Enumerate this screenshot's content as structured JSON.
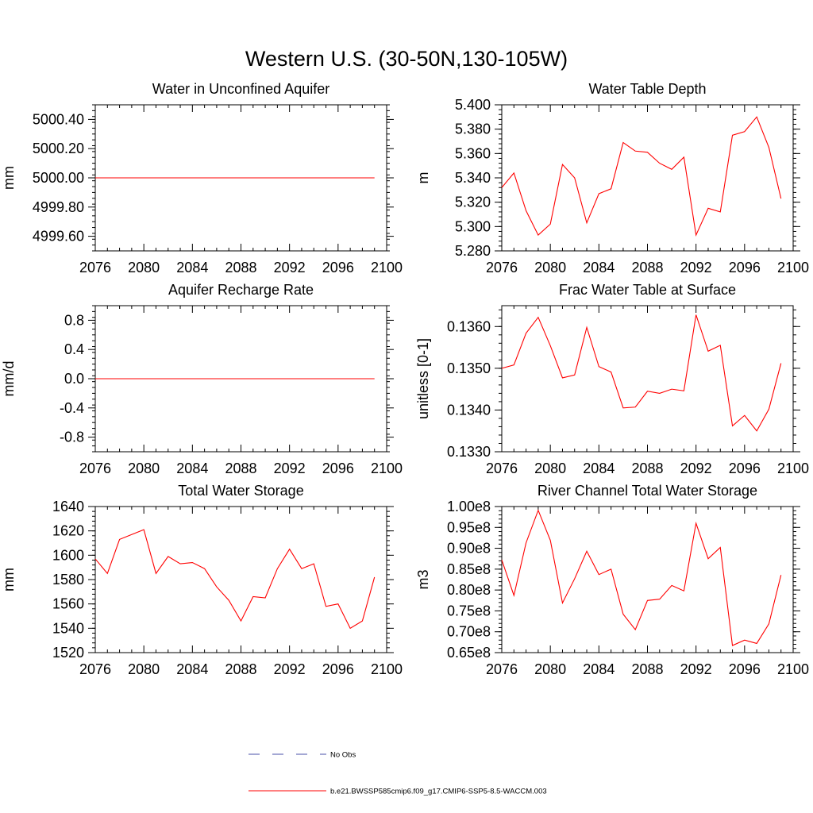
{
  "figure": {
    "title": "Western U.S. (30-50N,130-105W)"
  },
  "legend": {
    "entries": [
      {
        "label": "No Obs",
        "color": "#4a52a8",
        "style": "dashed"
      },
      {
        "label": "b.e21.BWSSP585cmip6.f09_g17.CMIP6-SSP5-8.5-WACCM.003",
        "color": "#ff0000",
        "style": "solid"
      }
    ]
  },
  "colors": {
    "series": "#ff0000",
    "axis": "#000000"
  },
  "chart_data": [
    {
      "type": "line",
      "title": "Water in Unconfined Aquifer",
      "xlabel": "",
      "ylabel": "mm",
      "xlim": [
        2076,
        2100
      ],
      "ylim": [
        4999.5,
        5000.5
      ],
      "xticks": [
        2076,
        2080,
        2084,
        2088,
        2092,
        2096,
        2100
      ],
      "xticklabels": [
        "2076",
        "2080",
        "2084",
        "2088",
        "2092",
        "2096",
        "2100"
      ],
      "yticks": [
        4999.6,
        4999.8,
        5000.0,
        5000.2,
        5000.4
      ],
      "yticklabels": [
        "4999.60",
        "4999.80",
        "5000.00",
        "5000.20",
        "5000.40"
      ],
      "x": [
        2076,
        2077,
        2078,
        2079,
        2080,
        2081,
        2082,
        2083,
        2084,
        2085,
        2086,
        2087,
        2088,
        2089,
        2090,
        2091,
        2092,
        2093,
        2094,
        2095,
        2096,
        2097,
        2098,
        2099
      ],
      "series": [
        {
          "name": "b.e21.BWSSP585cmip6.f09_g17.CMIP6-SSP5-8.5-WACCM.003",
          "values": [
            5000,
            5000,
            5000,
            5000,
            5000,
            5000,
            5000,
            5000,
            5000,
            5000,
            5000,
            5000,
            5000,
            5000,
            5000,
            5000,
            5000,
            5000,
            5000,
            5000,
            5000,
            5000,
            5000,
            5000
          ]
        }
      ]
    },
    {
      "type": "line",
      "title": "Water Table Depth",
      "xlabel": "",
      "ylabel": "m",
      "xlim": [
        2076,
        2100
      ],
      "ylim": [
        5.28,
        5.4
      ],
      "xticks": [
        2076,
        2080,
        2084,
        2088,
        2092,
        2096,
        2100
      ],
      "xticklabels": [
        "2076",
        "2080",
        "2084",
        "2088",
        "2092",
        "2096",
        "2100"
      ],
      "yticks": [
        5.28,
        5.3,
        5.32,
        5.34,
        5.36,
        5.38,
        5.4
      ],
      "yticklabels": [
        "5.280",
        "5.300",
        "5.320",
        "5.340",
        "5.360",
        "5.380",
        "5.400"
      ],
      "x": [
        2076,
        2077,
        2078,
        2079,
        2080,
        2081,
        2082,
        2083,
        2084,
        2085,
        2086,
        2087,
        2088,
        2089,
        2090,
        2091,
        2092,
        2093,
        2094,
        2095,
        2096,
        2097,
        2098,
        2099
      ],
      "series": [
        {
          "name": "b.e21.BWSSP585cmip6.f09_g17.CMIP6-SSP5-8.5-WACCM.003",
          "values": [
            5.332,
            5.344,
            5.313,
            5.293,
            5.302,
            5.351,
            5.34,
            5.303,
            5.327,
            5.331,
            5.369,
            5.362,
            5.361,
            5.352,
            5.347,
            5.357,
            5.293,
            5.315,
            5.312,
            5.375,
            5.378,
            5.39,
            5.365,
            5.323
          ]
        }
      ]
    },
    {
      "type": "line",
      "title": "Aquifer Recharge Rate",
      "xlabel": "",
      "ylabel": "mm/d",
      "xlim": [
        2076,
        2100
      ],
      "ylim": [
        -1.0,
        1.0
      ],
      "xticks": [
        2076,
        2080,
        2084,
        2088,
        2092,
        2096,
        2100
      ],
      "xticklabels": [
        "2076",
        "2080",
        "2084",
        "2088",
        "2092",
        "2096",
        "2100"
      ],
      "yticks": [
        -0.8,
        -0.4,
        0.0,
        0.4,
        0.8
      ],
      "yticklabels": [
        "-0.8",
        "-0.4",
        "0.0",
        "0.4",
        "0.8"
      ],
      "x": [
        2076,
        2077,
        2078,
        2079,
        2080,
        2081,
        2082,
        2083,
        2084,
        2085,
        2086,
        2087,
        2088,
        2089,
        2090,
        2091,
        2092,
        2093,
        2094,
        2095,
        2096,
        2097,
        2098,
        2099
      ],
      "series": [
        {
          "name": "b.e21.BWSSP585cmip6.f09_g17.CMIP6-SSP5-8.5-WACCM.003",
          "values": [
            0,
            0,
            0,
            0,
            0,
            0,
            0,
            0,
            0,
            0,
            0,
            0,
            0,
            0,
            0,
            0,
            0,
            0,
            0,
            0,
            0,
            0,
            0,
            0
          ]
        }
      ]
    },
    {
      "type": "line",
      "title": "Frac Water Table at Surface",
      "xlabel": "",
      "ylabel": "unitless [0-1]",
      "xlim": [
        2076,
        2100
      ],
      "ylim": [
        0.133,
        0.1365
      ],
      "xticks": [
        2076,
        2080,
        2084,
        2088,
        2092,
        2096,
        2100
      ],
      "xticklabels": [
        "2076",
        "2080",
        "2084",
        "2088",
        "2092",
        "2096",
        "2100"
      ],
      "yticks": [
        0.133,
        0.134,
        0.135,
        0.136
      ],
      "yticklabels": [
        "0.1330",
        "0.1340",
        "0.1350",
        "0.1360"
      ],
      "x": [
        2076,
        2077,
        2078,
        2079,
        2080,
        2081,
        2082,
        2083,
        2084,
        2085,
        2086,
        2087,
        2088,
        2089,
        2090,
        2091,
        2092,
        2093,
        2094,
        2095,
        2096,
        2097,
        2098,
        2099
      ],
      "series": [
        {
          "name": "b.e21.BWSSP585cmip6.f09_g17.CMIP6-SSP5-8.5-WACCM.003",
          "values": [
            0.135,
            0.13508,
            0.13584,
            0.13622,
            0.13554,
            0.13477,
            0.13484,
            0.13598,
            0.13504,
            0.13491,
            0.13405,
            0.13407,
            0.13445,
            0.1344,
            0.1345,
            0.13446,
            0.13628,
            0.13541,
            0.13555,
            0.13362,
            0.13387,
            0.1335,
            0.13402,
            0.13512
          ]
        }
      ]
    },
    {
      "type": "line",
      "title": "Total Water Storage",
      "xlabel": "",
      "ylabel": "mm",
      "xlim": [
        2076,
        2100
      ],
      "ylim": [
        1520,
        1640
      ],
      "xticks": [
        2076,
        2080,
        2084,
        2088,
        2092,
        2096,
        2100
      ],
      "xticklabels": [
        "2076",
        "2080",
        "2084",
        "2088",
        "2092",
        "2096",
        "2100"
      ],
      "yticks": [
        1520,
        1540,
        1560,
        1580,
        1600,
        1620,
        1640
      ],
      "yticklabels": [
        "1520",
        "1540",
        "1560",
        "1580",
        "1600",
        "1620",
        "1640"
      ],
      "x": [
        2076,
        2077,
        2078,
        2079,
        2080,
        2081,
        2082,
        2083,
        2084,
        2085,
        2086,
        2087,
        2088,
        2089,
        2090,
        2091,
        2092,
        2093,
        2094,
        2095,
        2096,
        2097,
        2098,
        2099
      ],
      "series": [
        {
          "name": "b.e21.BWSSP585cmip6.f09_g17.CMIP6-SSP5-8.5-WACCM.003",
          "values": [
            1597,
            1585,
            1613,
            1617,
            1621,
            1585,
            1599,
            1593,
            1594,
            1589,
            1574,
            1563,
            1546,
            1566,
            1565,
            1589,
            1605,
            1589,
            1593,
            1558,
            1560,
            1540,
            1546,
            1582
          ]
        }
      ]
    },
    {
      "type": "line",
      "title": "River Channel Total Water Storage",
      "xlabel": "",
      "ylabel": "m3",
      "xlim": [
        2076,
        2100
      ],
      "ylim": [
        65000000.0,
        100000000.0
      ],
      "xticks": [
        2076,
        2080,
        2084,
        2088,
        2092,
        2096,
        2100
      ],
      "xticklabels": [
        "2076",
        "2080",
        "2084",
        "2088",
        "2092",
        "2096",
        "2100"
      ],
      "yticks": [
        65000000.0,
        70000000.0,
        75000000.0,
        80000000.0,
        85000000.0,
        90000000.0,
        95000000.0,
        100000000.0
      ],
      "yticklabels": [
        "0.65e8",
        "0.70e8",
        "0.75e8",
        "0.80e8",
        "0.85e8",
        "0.90e8",
        "0.95e8",
        "1.00e8"
      ],
      "x": [
        2076,
        2077,
        2078,
        2079,
        2080,
        2081,
        2082,
        2083,
        2084,
        2085,
        2086,
        2087,
        2088,
        2089,
        2090,
        2091,
        2092,
        2093,
        2094,
        2095,
        2096,
        2097,
        2098,
        2099
      ],
      "series": [
        {
          "name": "b.e21.BWSSP585cmip6.f09_g17.CMIP6-SSP5-8.5-WACCM.003",
          "values": [
            87200000.0,
            78700000.0,
            91300000.0,
            99100000.0,
            91900000.0,
            76900000.0,
            82700000.0,
            89300000.0,
            83700000.0,
            85000000.0,
            74200000.0,
            70500000.0,
            77500000.0,
            77800000.0,
            81100000.0,
            79800000.0,
            96000000.0,
            87500000.0,
            90200000.0,
            66700000.0,
            68000000.0,
            67200000.0,
            71900000.0,
            83600000.0
          ]
        }
      ]
    }
  ]
}
